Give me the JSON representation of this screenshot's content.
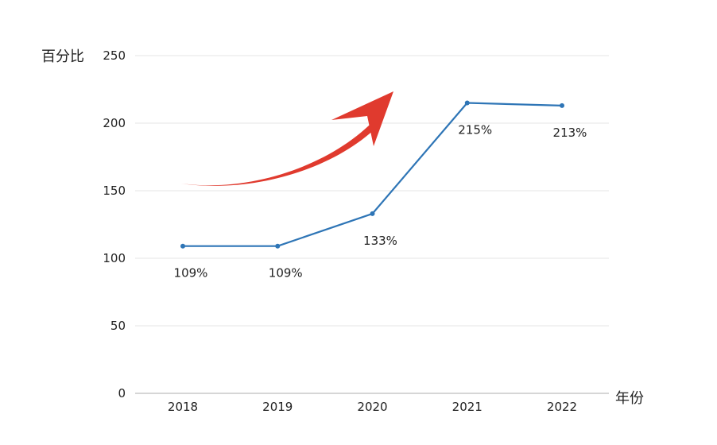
{
  "chart_data": {
    "type": "line",
    "ylabel": "百分比",
    "xlabel": "年份",
    "ylim": [
      0,
      250
    ],
    "yticks": [
      0,
      50,
      100,
      150,
      200,
      250
    ],
    "grid": true,
    "categories": [
      "2018",
      "2019",
      "2020",
      "2021",
      "2022"
    ],
    "series": [
      {
        "values": [
          109,
          109,
          133,
          215,
          213
        ],
        "labels": [
          "109%",
          "109%",
          "133%",
          "215%",
          "213%"
        ],
        "color": "#2e75b6"
      }
    ],
    "annotation": {
      "shape": "curved-arrow",
      "color": "#e03a2e"
    }
  }
}
